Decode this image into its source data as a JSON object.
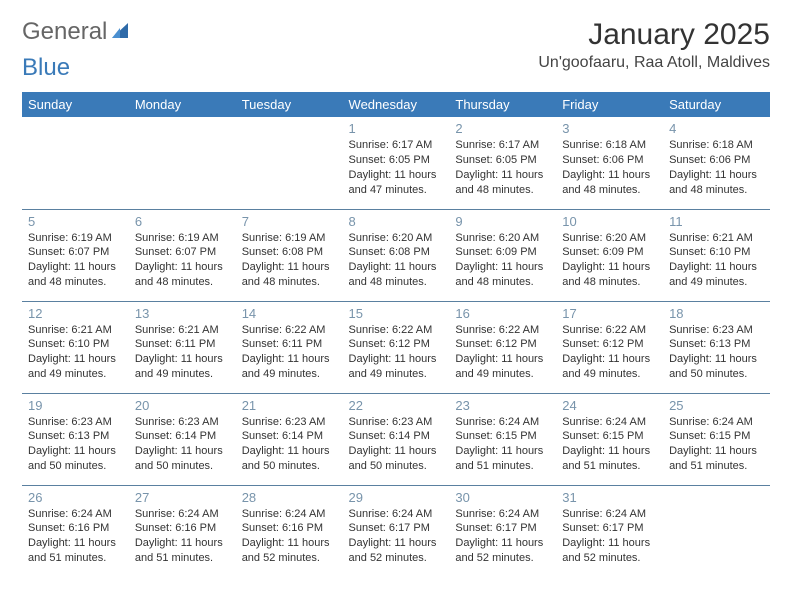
{
  "logo": {
    "text1": "General",
    "text2": "Blue"
  },
  "title": "January 2025",
  "location": "Un'goofaaru, Raa Atoll, Maldives",
  "colors": {
    "header_bg": "#3a7ab8",
    "header_text": "#ffffff",
    "daynum": "#7894ab",
    "row_border": "#5a80a0",
    "body_text": "#333333",
    "logo_gray": "#777777",
    "logo_blue": "#3a7ab8",
    "background": "#ffffff"
  },
  "day_headers": [
    "Sunday",
    "Monday",
    "Tuesday",
    "Wednesday",
    "Thursday",
    "Friday",
    "Saturday"
  ],
  "weeks": [
    [
      null,
      null,
      null,
      {
        "n": "1",
        "sr": "Sunrise: 6:17 AM",
        "ss": "Sunset: 6:05 PM",
        "d1": "Daylight: 11 hours",
        "d2": "and 47 minutes."
      },
      {
        "n": "2",
        "sr": "Sunrise: 6:17 AM",
        "ss": "Sunset: 6:05 PM",
        "d1": "Daylight: 11 hours",
        "d2": "and 48 minutes."
      },
      {
        "n": "3",
        "sr": "Sunrise: 6:18 AM",
        "ss": "Sunset: 6:06 PM",
        "d1": "Daylight: 11 hours",
        "d2": "and 48 minutes."
      },
      {
        "n": "4",
        "sr": "Sunrise: 6:18 AM",
        "ss": "Sunset: 6:06 PM",
        "d1": "Daylight: 11 hours",
        "d2": "and 48 minutes."
      }
    ],
    [
      {
        "n": "5",
        "sr": "Sunrise: 6:19 AM",
        "ss": "Sunset: 6:07 PM",
        "d1": "Daylight: 11 hours",
        "d2": "and 48 minutes."
      },
      {
        "n": "6",
        "sr": "Sunrise: 6:19 AM",
        "ss": "Sunset: 6:07 PM",
        "d1": "Daylight: 11 hours",
        "d2": "and 48 minutes."
      },
      {
        "n": "7",
        "sr": "Sunrise: 6:19 AM",
        "ss": "Sunset: 6:08 PM",
        "d1": "Daylight: 11 hours",
        "d2": "and 48 minutes."
      },
      {
        "n": "8",
        "sr": "Sunrise: 6:20 AM",
        "ss": "Sunset: 6:08 PM",
        "d1": "Daylight: 11 hours",
        "d2": "and 48 minutes."
      },
      {
        "n": "9",
        "sr": "Sunrise: 6:20 AM",
        "ss": "Sunset: 6:09 PM",
        "d1": "Daylight: 11 hours",
        "d2": "and 48 minutes."
      },
      {
        "n": "10",
        "sr": "Sunrise: 6:20 AM",
        "ss": "Sunset: 6:09 PM",
        "d1": "Daylight: 11 hours",
        "d2": "and 48 minutes."
      },
      {
        "n": "11",
        "sr": "Sunrise: 6:21 AM",
        "ss": "Sunset: 6:10 PM",
        "d1": "Daylight: 11 hours",
        "d2": "and 49 minutes."
      }
    ],
    [
      {
        "n": "12",
        "sr": "Sunrise: 6:21 AM",
        "ss": "Sunset: 6:10 PM",
        "d1": "Daylight: 11 hours",
        "d2": "and 49 minutes."
      },
      {
        "n": "13",
        "sr": "Sunrise: 6:21 AM",
        "ss": "Sunset: 6:11 PM",
        "d1": "Daylight: 11 hours",
        "d2": "and 49 minutes."
      },
      {
        "n": "14",
        "sr": "Sunrise: 6:22 AM",
        "ss": "Sunset: 6:11 PM",
        "d1": "Daylight: 11 hours",
        "d2": "and 49 minutes."
      },
      {
        "n": "15",
        "sr": "Sunrise: 6:22 AM",
        "ss": "Sunset: 6:12 PM",
        "d1": "Daylight: 11 hours",
        "d2": "and 49 minutes."
      },
      {
        "n": "16",
        "sr": "Sunrise: 6:22 AM",
        "ss": "Sunset: 6:12 PM",
        "d1": "Daylight: 11 hours",
        "d2": "and 49 minutes."
      },
      {
        "n": "17",
        "sr": "Sunrise: 6:22 AM",
        "ss": "Sunset: 6:12 PM",
        "d1": "Daylight: 11 hours",
        "d2": "and 49 minutes."
      },
      {
        "n": "18",
        "sr": "Sunrise: 6:23 AM",
        "ss": "Sunset: 6:13 PM",
        "d1": "Daylight: 11 hours",
        "d2": "and 50 minutes."
      }
    ],
    [
      {
        "n": "19",
        "sr": "Sunrise: 6:23 AM",
        "ss": "Sunset: 6:13 PM",
        "d1": "Daylight: 11 hours",
        "d2": "and 50 minutes."
      },
      {
        "n": "20",
        "sr": "Sunrise: 6:23 AM",
        "ss": "Sunset: 6:14 PM",
        "d1": "Daylight: 11 hours",
        "d2": "and 50 minutes."
      },
      {
        "n": "21",
        "sr": "Sunrise: 6:23 AM",
        "ss": "Sunset: 6:14 PM",
        "d1": "Daylight: 11 hours",
        "d2": "and 50 minutes."
      },
      {
        "n": "22",
        "sr": "Sunrise: 6:23 AM",
        "ss": "Sunset: 6:14 PM",
        "d1": "Daylight: 11 hours",
        "d2": "and 50 minutes."
      },
      {
        "n": "23",
        "sr": "Sunrise: 6:24 AM",
        "ss": "Sunset: 6:15 PM",
        "d1": "Daylight: 11 hours",
        "d2": "and 51 minutes."
      },
      {
        "n": "24",
        "sr": "Sunrise: 6:24 AM",
        "ss": "Sunset: 6:15 PM",
        "d1": "Daylight: 11 hours",
        "d2": "and 51 minutes."
      },
      {
        "n": "25",
        "sr": "Sunrise: 6:24 AM",
        "ss": "Sunset: 6:15 PM",
        "d1": "Daylight: 11 hours",
        "d2": "and 51 minutes."
      }
    ],
    [
      {
        "n": "26",
        "sr": "Sunrise: 6:24 AM",
        "ss": "Sunset: 6:16 PM",
        "d1": "Daylight: 11 hours",
        "d2": "and 51 minutes."
      },
      {
        "n": "27",
        "sr": "Sunrise: 6:24 AM",
        "ss": "Sunset: 6:16 PM",
        "d1": "Daylight: 11 hours",
        "d2": "and 51 minutes."
      },
      {
        "n": "28",
        "sr": "Sunrise: 6:24 AM",
        "ss": "Sunset: 6:16 PM",
        "d1": "Daylight: 11 hours",
        "d2": "and 52 minutes."
      },
      {
        "n": "29",
        "sr": "Sunrise: 6:24 AM",
        "ss": "Sunset: 6:17 PM",
        "d1": "Daylight: 11 hours",
        "d2": "and 52 minutes."
      },
      {
        "n": "30",
        "sr": "Sunrise: 6:24 AM",
        "ss": "Sunset: 6:17 PM",
        "d1": "Daylight: 11 hours",
        "d2": "and 52 minutes."
      },
      {
        "n": "31",
        "sr": "Sunrise: 6:24 AM",
        "ss": "Sunset: 6:17 PM",
        "d1": "Daylight: 11 hours",
        "d2": "and 52 minutes."
      },
      null
    ]
  ]
}
